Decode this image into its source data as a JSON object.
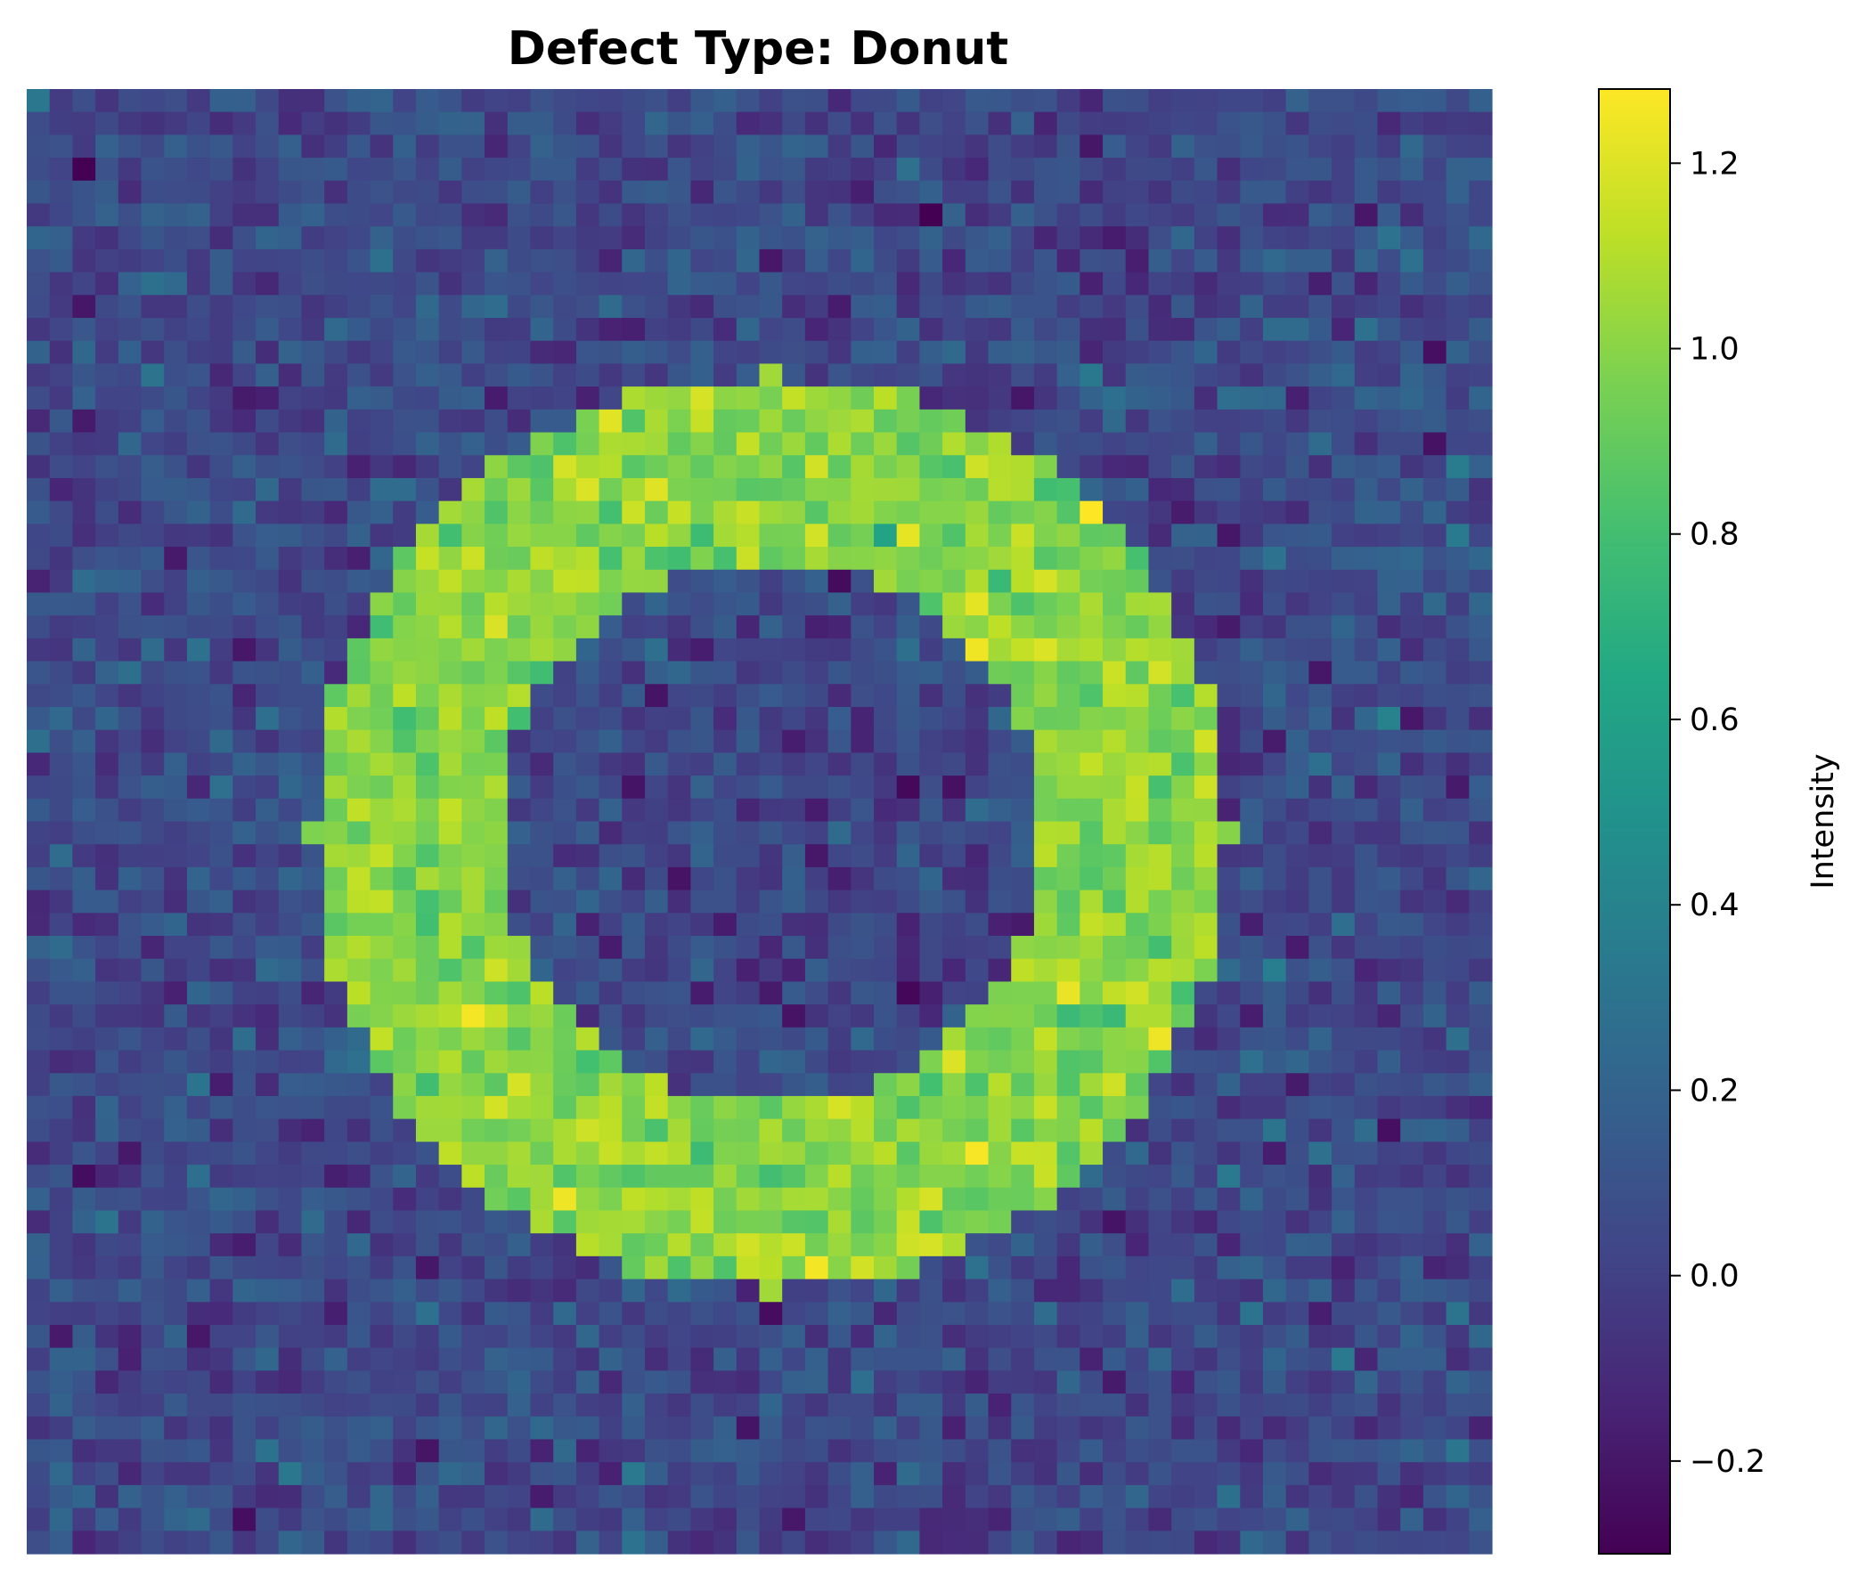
{
  "chart_data": {
    "type": "heatmap",
    "title": "Defect Type: Donut",
    "grid_size": [
      64,
      64
    ],
    "pattern": "donut",
    "ring_inner_radius_cells": 12,
    "ring_outer_radius_cells": 20,
    "ring_center_cell": [
      32,
      32
    ],
    "ring_mean_value": 1.0,
    "background_mean_value": 0.05,
    "noise_std": 0.1,
    "vmin": -0.3,
    "vmax": 1.28,
    "colormap": "viridis",
    "axes_visible": false,
    "grid": false,
    "colorbar": {
      "label": "Intensity",
      "ticks": [
        -0.2,
        0.0,
        0.2,
        0.4,
        0.6,
        0.8,
        1.0,
        1.2
      ],
      "tick_labels": [
        "−0.2",
        "0.0",
        "0.2",
        "0.4",
        "0.6",
        "0.8",
        "1.0",
        "1.2"
      ],
      "position": "right"
    }
  }
}
